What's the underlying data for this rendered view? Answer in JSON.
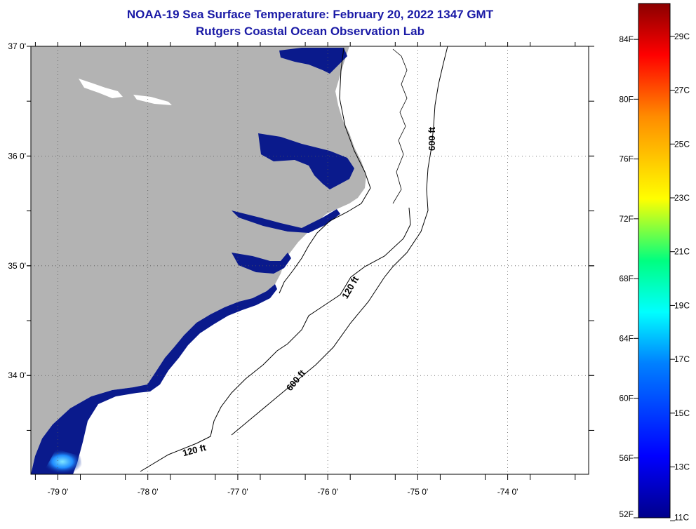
{
  "title": "NOAA-19 Sea Surface Temperature:  February 20, 2022 1347 GMT",
  "subtitle": "Rutgers Coastal Ocean Observation Lab",
  "map": {
    "lon_ticks": [
      {
        "value": -79,
        "label": "-79 0'"
      },
      {
        "value": -78,
        "label": "-78 0'"
      },
      {
        "value": -77,
        "label": "-77 0'"
      },
      {
        "value": -76,
        "label": "-76 0'"
      },
      {
        "value": -75,
        "label": "-75 0'"
      },
      {
        "value": -74,
        "label": "-74 0'"
      }
    ],
    "lat_ticks": [
      {
        "value": 37,
        "label": "37 0'"
      },
      {
        "value": 36,
        "label": "36 0'"
      },
      {
        "value": 35,
        "label": "35 0'"
      },
      {
        "value": 34,
        "label": "34 0'"
      }
    ],
    "lon_range": [
      -79.3,
      -73.1
    ],
    "lat_range": [
      33.1,
      37.0
    ],
    "land_color": "#b3b3b3",
    "ocean_nodata_color": "#ffffff",
    "cold_water_color": "#0a1a8c",
    "contour_labels": [
      "600 ft",
      "120 ft",
      "120 ft",
      "600 ft"
    ]
  },
  "colorbar": {
    "f_labels": [
      "84F",
      "80F",
      "76F",
      "72F",
      "68F",
      "64F",
      "60F",
      "56F",
      "52F"
    ],
    "c_labels": [
      "29C",
      "27C",
      "25C",
      "23C",
      "21C",
      "19C",
      "17C",
      "15C",
      "13C",
      "11C"
    ],
    "colors": [
      "#8b0000",
      "#ff0000",
      "#ff8c00",
      "#ffff00",
      "#00ff80",
      "#00ffff",
      "#0080ff",
      "#0000ff",
      "#00008b"
    ]
  }
}
